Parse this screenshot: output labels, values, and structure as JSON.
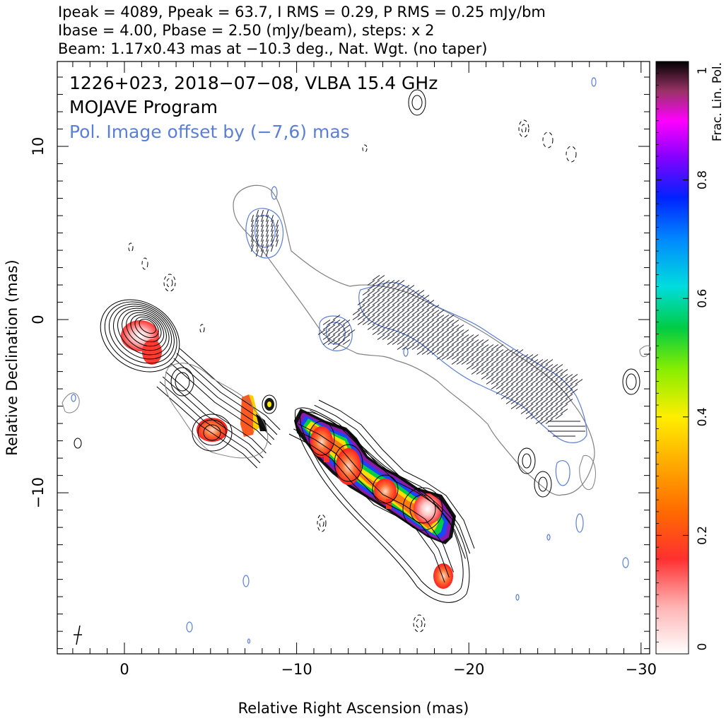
{
  "header": {
    "line1": "Ipeak = 4089, Ppeak = 63.7, I RMS = 0.29, P RMS = 0.25 mJy/bm",
    "line2": "Ibase = 4.00, Pbase = 2.50 (mJy/beam), steps: x 2",
    "line3": "Beam: 1.17x0.43 mas at −10.3 deg., Nat. Wgt. (no taper)"
  },
  "annotations": {
    "source": "1226+023, 2018−07−08, VLBA 15.4 GHz",
    "program": "MOJAVE Program",
    "offset_note": "Pol. Image offset by (−7,6) mas"
  },
  "colors": {
    "stokes_i_contour": "#000000",
    "pol_contour": "#5b7fd6",
    "lowest_contour": "#808080",
    "evpa_ticks": "#1a1a2e"
  },
  "chart_data": {
    "type": "heatmap",
    "title": "",
    "xlabel": "Relative Right Ascension (mas)",
    "ylabel": "Relative Declination (mas)",
    "xlim": [
      3.9,
      -30.5
    ],
    "ylim": [
      -19.3,
      14.9
    ],
    "x_ticks": [
      0,
      -10,
      -20,
      -30
    ],
    "x_tick_labels": [
      "0",
      "−10",
      "−20",
      "−30"
    ],
    "y_ticks": [
      10,
      0,
      -10
    ],
    "y_tick_labels": [
      "10",
      "0",
      "−10"
    ],
    "colorbar": {
      "label": "Frac. Lin. Pol.",
      "min": 0,
      "max": 1,
      "ticks": [
        0,
        0.2,
        0.4,
        0.6,
        0.8,
        1
      ],
      "tick_labels": [
        "0",
        "0.2",
        "0.4",
        "0.6",
        "0.8",
        "1"
      ]
    },
    "jet_ridge_total_intensity": [
      [
        0,
        0
      ],
      [
        -2,
        -1.5
      ],
      [
        -4,
        -3.5
      ],
      [
        -6,
        -6.5
      ],
      [
        -8,
        -7.2
      ],
      [
        -10,
        -6.0
      ],
      [
        -12,
        -7.5
      ],
      [
        -14,
        -9.2
      ],
      [
        -16,
        -10.0
      ],
      [
        -18,
        -11.5
      ],
      [
        -19.5,
        -14.5
      ]
    ],
    "jet_ridge_polarization_offset": [
      [
        -8,
        5.5
      ],
      [
        -12,
        0
      ],
      [
        -15,
        0.5
      ],
      [
        -18,
        -2.0
      ],
      [
        -21,
        -3.5
      ],
      [
        -24,
        -5.0
      ],
      [
        -26,
        -6.5
      ]
    ],
    "fractional_pol_regions": [
      {
        "ra": -1.2,
        "dec": -1.3,
        "frac_pol": 0.12
      },
      {
        "ra": -5.5,
        "dec": -6.8,
        "frac_pol": 0.22
      },
      {
        "ra": -7.2,
        "dec": -6.0,
        "frac_pol": 0.3
      },
      {
        "ra": -8.3,
        "dec": -5.5,
        "frac_pol": 0.95
      },
      {
        "ra": -11.5,
        "dec": -7.3,
        "frac_pol": 0.45
      },
      {
        "ra": -13.0,
        "dec": -9.0,
        "frac_pol": 0.25
      },
      {
        "ra": -15.5,
        "dec": -10.3,
        "frac_pol": 0.28
      },
      {
        "ra": -17.5,
        "dec": -11.5,
        "frac_pol": 0.15
      },
      {
        "ra": -18.7,
        "dec": -12.2,
        "frac_pol": 0.5
      },
      {
        "ra": -18.4,
        "dec": -15.3,
        "frac_pol": 0.2
      }
    ],
    "grid": false
  }
}
